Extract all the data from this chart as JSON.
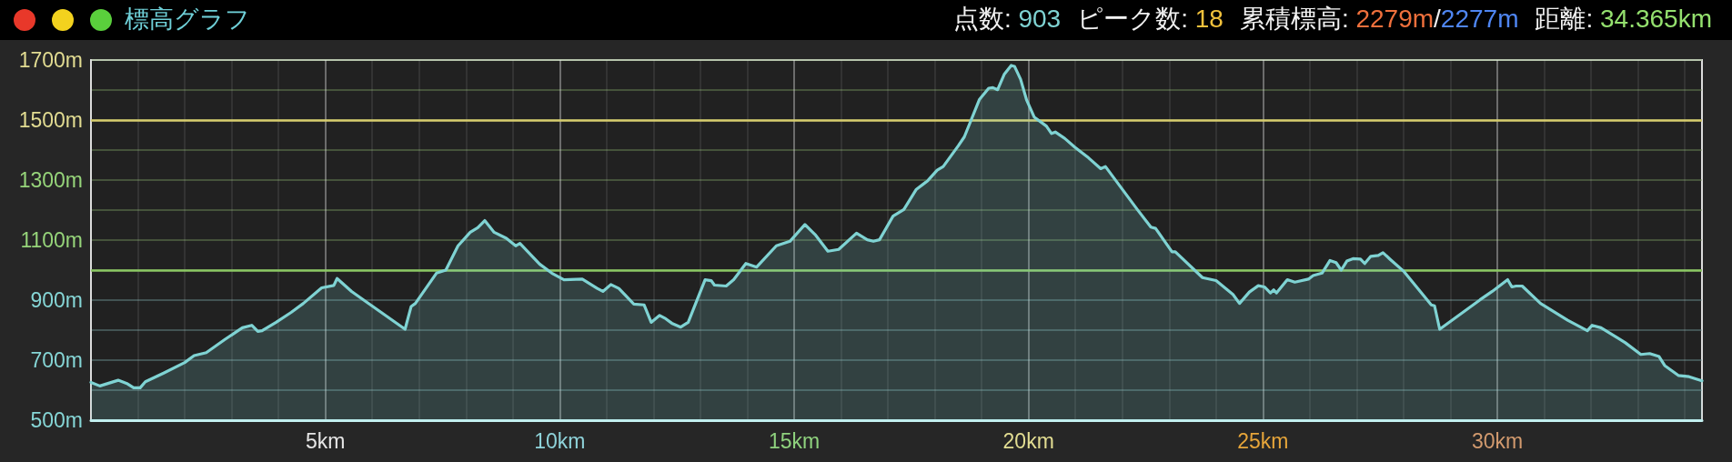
{
  "chart_data": {
    "type": "area",
    "title": "標高グラフ",
    "annotations": [
      "点数: 903",
      "ピーク数: 18",
      "累積標高: 2279m/2277m",
      "距離: 34.365km"
    ],
    "x": [
      0,
      0.19,
      0.58,
      0.78,
      0.91,
      1.05,
      1.16,
      1.55,
      2.0,
      2.2,
      2.46,
      2.85,
      3.23,
      3.43,
      3.56,
      3.65,
      3.95,
      4.27,
      4.53,
      4.92,
      5.18,
      5.25,
      5.56,
      5.82,
      6.7,
      6.83,
      6.92,
      7.37,
      7.57,
      7.83,
      8.09,
      8.25,
      8.4,
      8.6,
      8.86,
      9.06,
      9.15,
      9.57,
      9.83,
      10.09,
      10.48,
      10.8,
      10.92,
      11.09,
      11.26,
      11.58,
      11.8,
      11.95,
      12.13,
      12.26,
      12.39,
      12.58,
      12.74,
      13.1,
      13.23,
      13.3,
      13.55,
      13.71,
      13.97,
      14.2,
      14.62,
      14.91,
      15.23,
      15.46,
      15.72,
      15.95,
      16.33,
      16.56,
      16.69,
      16.82,
      17.11,
      17.34,
      17.6,
      17.85,
      18.05,
      18.18,
      18.5,
      18.63,
      18.95,
      19.15,
      19.24,
      19.34,
      19.48,
      19.63,
      19.7,
      19.83,
      19.96,
      20.12,
      20.38,
      20.49,
      20.57,
      20.77,
      20.99,
      21.28,
      21.54,
      21.64,
      22.32,
      22.61,
      22.71,
      23.06,
      23.13,
      23.71,
      24.0,
      24.36,
      24.5,
      24.71,
      24.9,
      25.03,
      25.16,
      25.23,
      25.29,
      25.52,
      25.68,
      25.97,
      26.07,
      26.26,
      26.43,
      26.56,
      26.67,
      26.79,
      26.92,
      27.08,
      27.17,
      27.3,
      27.46,
      27.56,
      27.72,
      28.01,
      28.59,
      28.66,
      28.77,
      29.63,
      29.89,
      30.22,
      30.31,
      30.4,
      30.53,
      30.92,
      31.5,
      31.92,
      32.02,
      32.21,
      32.73,
      33.06,
      33.25,
      33.45,
      33.57,
      33.86,
      34.09,
      34.365
    ],
    "values": [
      626,
      614,
      633,
      621,
      608,
      608,
      628,
      657,
      692,
      715,
      725,
      768,
      808,
      816,
      796,
      798,
      826,
      859,
      889,
      941,
      949,
      972,
      929,
      900,
      803,
      879,
      889,
      990,
      1000,
      1081,
      1126,
      1141,
      1165,
      1126,
      1106,
      1081,
      1089,
      1020,
      990,
      968,
      970,
      939,
      929,
      952,
      939,
      887,
      884,
      826,
      849,
      838,
      823,
      810,
      826,
      968,
      965,
      950,
      947,
      968,
      1022,
      1010,
      1081,
      1096,
      1152,
      1116,
      1063,
      1069,
      1123,
      1101,
      1096,
      1101,
      1180,
      1202,
      1268,
      1298,
      1333,
      1345,
      1414,
      1444,
      1568,
      1606,
      1608,
      1601,
      1652,
      1682,
      1679,
      1636,
      1566,
      1510,
      1480,
      1455,
      1460,
      1439,
      1409,
      1374,
      1338,
      1345,
      1202,
      1143,
      1139,
      1061,
      1061,
      975,
      965,
      919,
      889,
      927,
      948,
      944,
      924,
      934,
      924,
      968,
      960,
      970,
      982,
      990,
      1032,
      1025,
      1000,
      1030,
      1038,
      1037,
      1022,
      1046,
      1049,
      1058,
      1035,
      995,
      884,
      881,
      803,
      901,
      929,
      968,
      944,
      947,
      947,
      889,
      833,
      798,
      816,
      808,
      758,
      719,
      722,
      712,
      682,
      649,
      645,
      631
    ],
    "color": "#7fd3d3",
    "xlim": [
      0,
      34.365
    ],
    "xticks": [
      {
        "value": 1,
        "label": null
      },
      {
        "value": 2,
        "label": null
      },
      {
        "value": 3,
        "label": null
      },
      {
        "value": 4,
        "label": null
      },
      {
        "value": 5,
        "label": "5km"
      },
      {
        "value": 6,
        "label": null
      },
      {
        "value": 7,
        "label": null
      },
      {
        "value": 8,
        "label": null
      },
      {
        "value": 9,
        "label": null
      },
      {
        "value": 10,
        "label": "10km"
      },
      {
        "value": 11,
        "label": null
      },
      {
        "value": 12,
        "label": null
      },
      {
        "value": 13,
        "label": null
      },
      {
        "value": 14,
        "label": null
      },
      {
        "value": 15,
        "label": "15km"
      },
      {
        "value": 16,
        "label": null
      },
      {
        "value": 17,
        "label": null
      },
      {
        "value": 18,
        "label": null
      },
      {
        "value": 19,
        "label": null
      },
      {
        "value": 20,
        "label": "20km"
      },
      {
        "value": 21,
        "label": null
      },
      {
        "value": 22,
        "label": null
      },
      {
        "value": 23,
        "label": null
      },
      {
        "value": 24,
        "label": null
      },
      {
        "value": 25,
        "label": "25km"
      },
      {
        "value": 26,
        "label": null
      },
      {
        "value": 27,
        "label": null
      },
      {
        "value": 28,
        "label": null
      },
      {
        "value": 29,
        "label": null
      },
      {
        "value": 30,
        "label": "30km"
      },
      {
        "value": 31,
        "label": null
      },
      {
        "value": 32,
        "label": null
      },
      {
        "value": 33,
        "label": null
      },
      {
        "value": 34,
        "label": null
      }
    ],
    "ylim": [
      500,
      1700
    ],
    "yticks": [
      {
        "value": 500,
        "label": "500m"
      },
      {
        "value": 600,
        "label": null
      },
      {
        "value": 700,
        "label": "700m"
      },
      {
        "value": 800,
        "label": null
      },
      {
        "value": 900,
        "label": "900m"
      },
      {
        "value": 1000,
        "label": null
      },
      {
        "value": 1100,
        "label": "1100m"
      },
      {
        "value": 1200,
        "label": null
      },
      {
        "value": 1300,
        "label": "1300m"
      },
      {
        "value": 1400,
        "label": null
      },
      {
        "value": 1500,
        "label": "1500m"
      },
      {
        "value": 1600,
        "label": null
      },
      {
        "value": 1700,
        "label": "1700m"
      }
    ],
    "ref_lines": [
      {
        "axis": "y",
        "value": 1000,
        "label": null,
        "color": "#8cc864"
      },
      {
        "axis": "y",
        "value": 1500,
        "label": null,
        "color": "#d7cd6e"
      }
    ],
    "grid": true
  }
}
